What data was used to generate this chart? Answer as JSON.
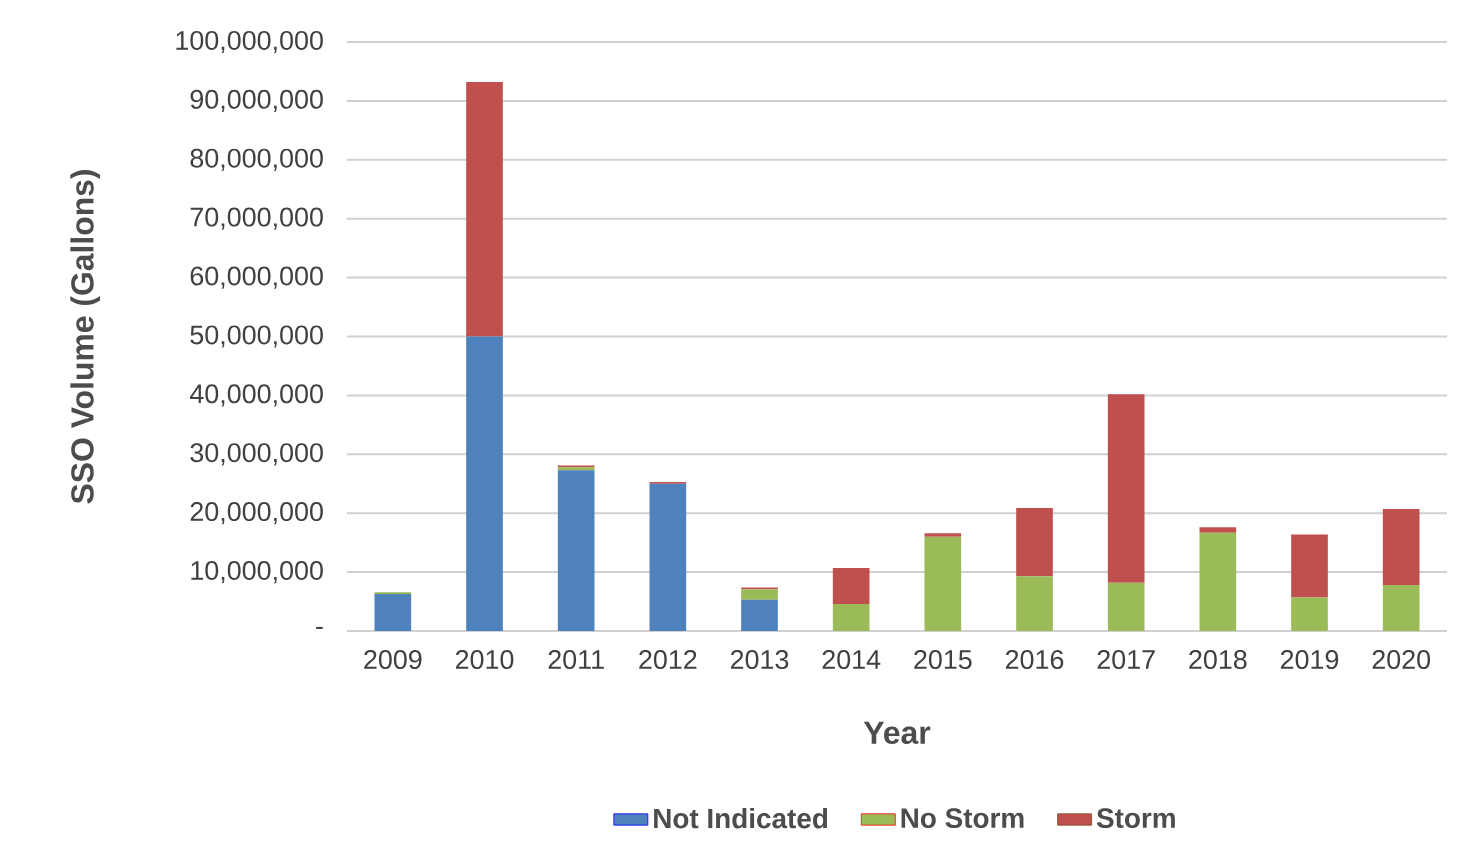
{
  "chart_data": {
    "type": "bar",
    "stacked": true,
    "xlabel": "Year",
    "ylabel": "SSO Volume (Gallons)",
    "categories": [
      "2009",
      "2010",
      "2011",
      "2012",
      "2013",
      "2014",
      "2015",
      "2016",
      "2017",
      "2018",
      "2019",
      "2020"
    ],
    "series": [
      {
        "name": "Not Indicated",
        "color": "#4f81bd",
        "values": [
          6300000,
          50000000,
          27300000,
          25000000,
          5300000,
          0,
          0,
          0,
          0,
          0,
          0,
          0
        ]
      },
      {
        "name": "No Storm",
        "color": "#9bbb59",
        "values": [
          300000,
          0,
          500000,
          0,
          1800000,
          4600000,
          16000000,
          9300000,
          8200000,
          16700000,
          5700000,
          7800000
        ]
      },
      {
        "name": "Storm",
        "color": "#c0504d",
        "values": [
          0,
          43200000,
          300000,
          300000,
          300000,
          6100000,
          600000,
          11600000,
          32000000,
          900000,
          10700000,
          12900000
        ]
      }
    ],
    "ylim": [
      0,
      100000000
    ],
    "yticks": [
      {
        "value": 0,
        "label": "-"
      },
      {
        "value": 10000000,
        "label": "10,000,000"
      },
      {
        "value": 20000000,
        "label": "20,000,000"
      },
      {
        "value": 30000000,
        "label": "30,000,000"
      },
      {
        "value": 40000000,
        "label": "40,000,000"
      },
      {
        "value": 50000000,
        "label": "50,000,000"
      },
      {
        "value": 60000000,
        "label": "60,000,000"
      },
      {
        "value": 70000000,
        "label": "70,000,000"
      },
      {
        "value": 80000000,
        "label": "80,000,000"
      },
      {
        "value": 90000000,
        "label": "90,000,000"
      },
      {
        "value": 100000000,
        "label": "100,000,000"
      }
    ],
    "grid": "y",
    "legend": "bottom"
  }
}
